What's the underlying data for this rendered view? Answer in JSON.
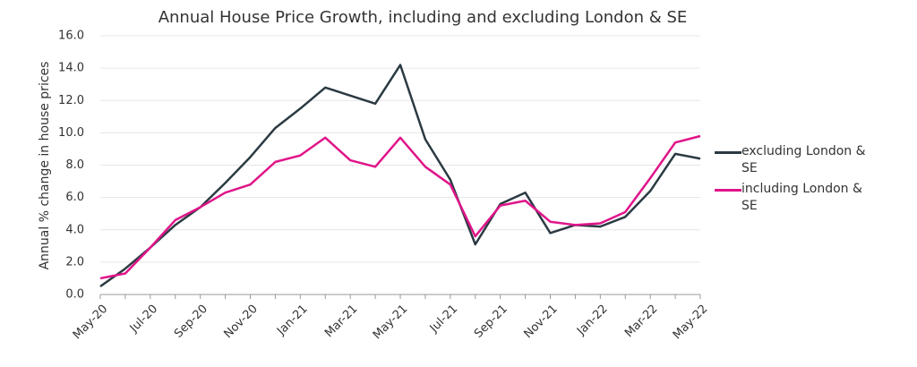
{
  "chart_data": {
    "type": "line",
    "title": "Annual House Price Growth, including and excluding London & SE",
    "y_label": "Annual % change in house prices",
    "categories": [
      "May-20",
      null,
      "Jul-20",
      null,
      "Sep-20",
      null,
      "Nov-20",
      null,
      "Jan-21",
      null,
      "Mar-21",
      null,
      "May-21",
      null,
      "Jul-21",
      null,
      "Sep-21",
      null,
      "Nov-21",
      null,
      "Jan-22",
      null,
      "Mar-22",
      null,
      "May-22"
    ],
    "series": [
      {
        "name": "excluding London & SE",
        "color": "#2b3a42",
        "values": [
          0.5,
          1.6,
          2.9,
          4.3,
          5.4,
          6.9,
          8.5,
          10.3,
          11.5,
          12.8,
          12.3,
          11.8,
          14.2,
          9.6,
          7.1,
          3.1,
          5.6,
          6.3,
          3.8,
          4.3,
          4.2,
          4.8,
          6.4,
          8.7,
          8.4
        ]
      },
      {
        "name": "including London & SE",
        "color": "#e0158a",
        "values": [
          1.0,
          1.3,
          2.9,
          4.6,
          5.4,
          6.3,
          6.8,
          8.2,
          8.6,
          9.7,
          8.3,
          7.9,
          9.7,
          7.9,
          6.8,
          3.6,
          5.5,
          5.8,
          4.5,
          4.3,
          4.4,
          5.1,
          7.2,
          9.4,
          9.8
        ]
      }
    ],
    "ylim": [
      0,
      16
    ],
    "yticks": [
      {
        "value": 0,
        "label": "0.0"
      },
      {
        "value": 2,
        "label": "2.0"
      },
      {
        "value": 4,
        "label": "4.0"
      },
      {
        "value": 6,
        "label": "6.0"
      },
      {
        "value": 8,
        "label": "8.0"
      },
      {
        "value": 10,
        "label": "10.0"
      },
      {
        "value": 12,
        "label": "12.0"
      },
      {
        "value": 14,
        "label": "14.0"
      },
      {
        "value": 16,
        "label": "16.0"
      }
    ],
    "grid": true,
    "legend": "right"
  }
}
